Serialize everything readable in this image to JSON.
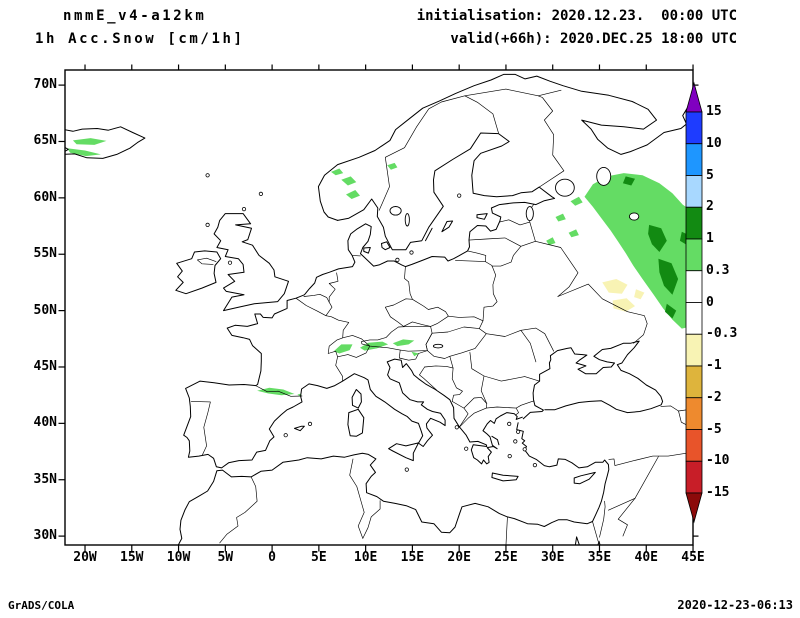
{
  "header": {
    "model": "nmmE_v4-a12km",
    "field": "1h Acc.Snow [cm/1h]",
    "initialisation": "initialisation: 2020.12.23.  00:00 UTC",
    "valid": "valid(+66h): 2020.DEC.25 18:00 UTC"
  },
  "footer": {
    "credit": "GrADS/COLA",
    "timestamp": "2020-12-23-06:13"
  },
  "axes": {
    "lat": {
      "labels": [
        "70N",
        "65N",
        "60N",
        "55N",
        "50N",
        "45N",
        "40N",
        "35N",
        "30N"
      ],
      "values": [
        70,
        65,
        60,
        55,
        50,
        45,
        40,
        35,
        30
      ]
    },
    "lon": {
      "labels": [
        "20W",
        "15W",
        "10W",
        "5W",
        "0",
        "5E",
        "10E",
        "15E",
        "20E",
        "25E",
        "30E",
        "35E",
        "40E",
        "45E"
      ],
      "values": [
        -20,
        -15,
        -10,
        -5,
        0,
        5,
        10,
        15,
        20,
        25,
        30,
        35,
        40,
        45
      ]
    }
  },
  "colorbar": {
    "tick_labels": [
      "15",
      "10",
      "5",
      "2",
      "1",
      "0.3",
      "0",
      "-0.3",
      "-1",
      "-2",
      "-5",
      "-10",
      "-15"
    ],
    "arrow_top_color": "#8000C0",
    "arrow_bottom_color": "#8C0A0A",
    "band_colors": [
      "#1E3CFF",
      "#1E96FF",
      "#A8D8FF",
      "#128A12",
      "#64DC64",
      "#FFFFFF",
      "#FFFFFF",
      "#F8F3B4",
      "#DEB43C",
      "#EE8A2E",
      "#E8542A",
      "#C81E28"
    ]
  },
  "map": {
    "background": "#FFFFFF",
    "line_color": "#000000",
    "fill_colors": {
      "snow_light": "#64DC64",
      "snow_heavy": "#128A12",
      "negative_light": "#F8F3B4"
    },
    "snow_regions_visible": [
      "Iceland (light green patches)",
      "southern Norway mountains (small light green spots)",
      "Alps 7E-15E 46N-47.5N (light green streaks)",
      "Pyrenees ~42.5N-43N (light green streak)",
      "western Russia 34E-45E 48N-62N (large light green area with dark green cores 40E-44E 50N-58N)",
      "pale yellow patches ~35E-39E 50N-52.5N"
    ]
  }
}
